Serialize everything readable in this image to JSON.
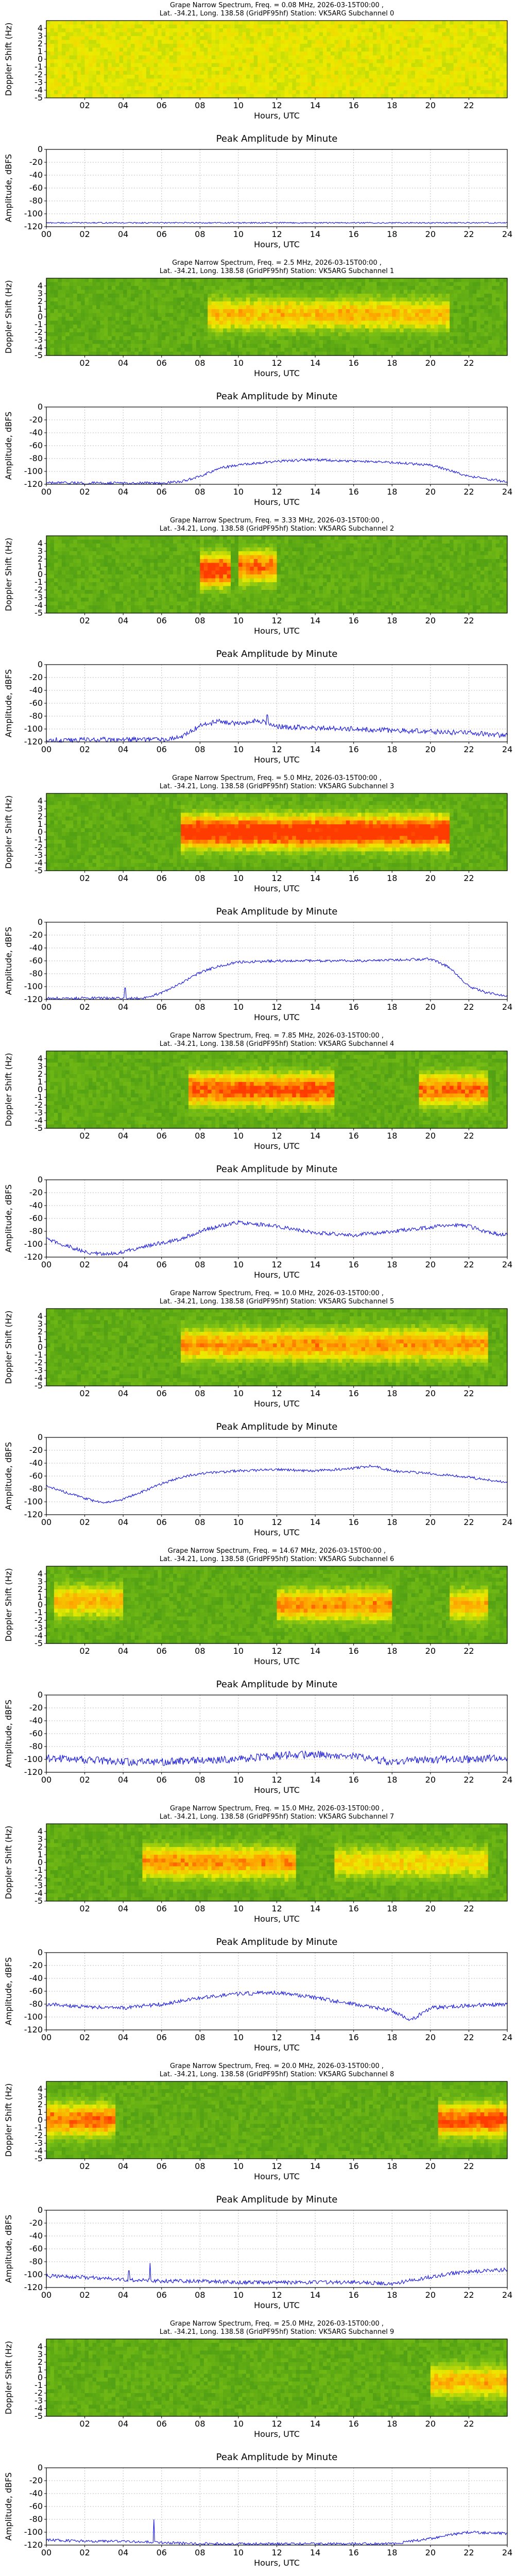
{
  "common": {
    "spectrum_xlabel": "Hours, UTC",
    "spectrum_ylabel": "Doppler Shift (Hz)",
    "spectrum_xticks": [
      "02",
      "04",
      "06",
      "08",
      "10",
      "12",
      "14",
      "16",
      "18",
      "20",
      "22"
    ],
    "spectrum_yticks": [
      "4",
      "3",
      "2",
      "1",
      "0",
      "-1",
      "-2",
      "-3",
      "-4",
      "-5"
    ],
    "amp_title": "Peak Amplitude by Minute",
    "amp_xlabel": "Hours, UTC",
    "amp_ylabel": "Amplitude, dBFS",
    "amp_xticks": [
      "00",
      "02",
      "04",
      "06",
      "08",
      "10",
      "12",
      "14",
      "16",
      "18",
      "20",
      "22",
      "24"
    ],
    "amp_yticks": [
      "0",
      "-20",
      "-40",
      "-60",
      "-80",
      "-100",
      "-120"
    ],
    "colors": {
      "background_green": "#2e8b12",
      "mid_yellow": "#e8e800",
      "hot_orange": "#ff5a00",
      "line_blue": "#1010e0"
    }
  },
  "chart_data": [
    {
      "type": "heatmap",
      "title_line1": "Grape Narrow Spectrum, Freq. = 0.08 MHz, 2026-03-15T00:00 ,",
      "title_line2": "Lat. -34.21, Long. 138.58 (GridPF95hf) Station: VK5ARG Subchannel 0",
      "xlabel": "Hours, UTC",
      "ylabel": "Doppler Shift (Hz)",
      "xlim": [
        0,
        24
      ],
      "ylim": [
        -5,
        5
      ],
      "activity": "uniform yellow-green noise across full band",
      "hot_segments": []
    },
    {
      "type": "line",
      "title": "Peak Amplitude by Minute",
      "xlabel": "Hours, UTC",
      "ylabel": "Amplitude, dBFS",
      "xlim": [
        0,
        24
      ],
      "ylim": [
        -120,
        0
      ],
      "grid": true,
      "x": [
        0,
        24
      ],
      "y": [
        -114,
        -114
      ],
      "noise": 1,
      "spikes": []
    },
    {
      "type": "heatmap",
      "title_line1": "Grape Narrow Spectrum, Freq. = 2.5 MHz, 2026-03-15T00:00 ,",
      "title_line2": "Lat. -34.21, Long. 138.58 (GridPF95hf) Station: VK5ARG Subchannel 1",
      "xlabel": "Hours, UTC",
      "ylabel": "Doppler Shift (Hz)",
      "xlim": [
        0,
        24
      ],
      "ylim": [
        -5,
        5
      ],
      "activity": "yellow signal trace from about 08 to 21 UTC near 0 Hz",
      "hot_segments": [
        [
          8.5,
          21,
          0.3,
          0.5
        ]
      ]
    },
    {
      "type": "line",
      "title": "Peak Amplitude by Minute",
      "xlabel": "Hours, UTC",
      "ylabel": "Amplitude, dBFS",
      "xlim": [
        0,
        24
      ],
      "ylim": [
        -120,
        0
      ],
      "grid": true,
      "x": [
        0,
        6,
        7,
        8,
        9,
        10,
        12,
        14,
        16,
        18,
        20,
        21,
        22,
        23,
        24
      ],
      "y": [
        -118,
        -118,
        -116,
        -108,
        -95,
        -90,
        -84,
        -82,
        -84,
        -86,
        -90,
        -98,
        -108,
        -112,
        -116
      ],
      "noise": 2,
      "spikes": []
    },
    {
      "type": "heatmap",
      "title_line1": "Grape Narrow Spectrum, Freq. = 3.33 MHz, 2026-03-15T00:00 ,",
      "title_line2": "Lat. -34.21, Long. 138.58 (GridPF95hf) Station: VK5ARG Subchannel 2",
      "xlabel": "Hours, UTC",
      "ylabel": "Doppler Shift (Hz)",
      "xlim": [
        0,
        24
      ],
      "ylim": [
        -5,
        5
      ],
      "activity": "orange signal blobs between about 08 and 12 UTC",
      "hot_segments": [
        [
          8,
          9.5,
          0.5,
          0.9
        ],
        [
          10,
          12,
          1.0,
          0.7
        ]
      ]
    },
    {
      "type": "line",
      "title": "Peak Amplitude by Minute",
      "xlabel": "Hours, UTC",
      "ylabel": "Amplitude, dBFS",
      "xlim": [
        0,
        24
      ],
      "ylim": [
        -120,
        0
      ],
      "grid": true,
      "x": [
        0,
        6,
        7,
        8,
        9,
        10,
        11,
        12,
        14,
        16,
        18,
        20,
        22,
        24
      ],
      "y": [
        -117,
        -116,
        -112,
        -95,
        -88,
        -92,
        -86,
        -96,
        -98,
        -100,
        -102,
        -104,
        -106,
        -110
      ],
      "noise": 4,
      "spikes": [
        [
          11.5,
          -78
        ]
      ]
    },
    {
      "type": "heatmap",
      "title_line1": "Grape Narrow Spectrum, Freq. = 5.0 MHz, 2026-03-15T00:00 ,",
      "title_line2": "Lat. -34.21, Long. 138.58 (GridPF95hf) Station: VK5ARG Subchannel 3",
      "xlabel": "Hours, UTC",
      "ylabel": "Doppler Shift (Hz)",
      "xlim": [
        0,
        24
      ],
      "ylim": [
        -5,
        5
      ],
      "activity": "strong orange-red trace from about 07 to 21 UTC",
      "hot_segments": [
        [
          7,
          21,
          0.0,
          1.0
        ]
      ]
    },
    {
      "type": "line",
      "title": "Peak Amplitude by Minute",
      "xlabel": "Hours, UTC",
      "ylabel": "Amplitude, dBFS",
      "xlim": [
        0,
        24
      ],
      "ylim": [
        -120,
        0
      ],
      "grid": true,
      "x": [
        0,
        5,
        6,
        7,
        8,
        9,
        10,
        12,
        14,
        16,
        18,
        20,
        21,
        22,
        23,
        24
      ],
      "y": [
        -118,
        -118,
        -110,
        -95,
        -78,
        -68,
        -62,
        -60,
        -60,
        -60,
        -59,
        -57,
        -70,
        -100,
        -110,
        -115
      ],
      "noise": 2,
      "spikes": [
        [
          4.1,
          -102
        ]
      ]
    },
    {
      "type": "heatmap",
      "title_line1": "Grape Narrow Spectrum, Freq. = 7.85 MHz, 2026-03-15T00:00 ,",
      "title_line2": "Lat. -34.21, Long. 138.58 (GridPF95hf) Station: VK5ARG Subchannel 4",
      "xlabel": "Hours, UTC",
      "ylabel": "Doppler Shift (Hz)",
      "xlim": [
        0,
        24
      ],
      "ylim": [
        -5,
        5
      ],
      "activity": "broad orange spread centered near 11-12 UTC and 20-23 UTC",
      "hot_segments": [
        [
          7.5,
          15,
          0.0,
          0.8
        ],
        [
          19.5,
          23,
          0.0,
          0.7
        ]
      ]
    },
    {
      "type": "line",
      "title": "Peak Amplitude by Minute",
      "xlabel": "Hours, UTC",
      "ylabel": "Amplitude, dBFS",
      "xlim": [
        0,
        24
      ],
      "ylim": [
        -120,
        0
      ],
      "grid": true,
      "x": [
        0,
        1,
        2,
        3,
        4,
        5,
        6,
        7,
        8,
        9,
        10,
        12,
        14,
        16,
        18,
        20,
        21,
        22,
        23,
        24
      ],
      "y": [
        -92,
        -102,
        -112,
        -116,
        -112,
        -104,
        -98,
        -92,
        -80,
        -72,
        -66,
        -72,
        -82,
        -86,
        -80,
        -74,
        -70,
        -72,
        -82,
        -86
      ],
      "noise": 3,
      "spikes": []
    },
    {
      "type": "heatmap",
      "title_line1": "Grape Narrow Spectrum, Freq. = 10.0 MHz, 2026-03-15T00:00 ,",
      "title_line2": "Lat. -34.21, Long. 138.58 (GridPF95hf) Station: VK5ARG Subchannel 5",
      "xlabel": "Hours, UTC",
      "ylabel": "Doppler Shift (Hz)",
      "xlim": [
        0,
        24
      ],
      "ylim": [
        -5,
        5
      ],
      "activity": "orange trace from about 07 to 23 UTC",
      "hot_segments": [
        [
          7,
          23,
          0.3,
          0.6
        ]
      ]
    },
    {
      "type": "line",
      "title": "Peak Amplitude by Minute",
      "xlabel": "Hours, UTC",
      "ylabel": "Amplitude, dBFS",
      "xlim": [
        0,
        24
      ],
      "ylim": [
        -120,
        0
      ],
      "grid": true,
      "x": [
        0,
        1,
        2,
        3,
        4,
        5,
        6,
        7,
        8,
        10,
        12,
        14,
        16,
        17,
        18,
        20,
        22,
        24
      ],
      "y": [
        -75,
        -85,
        -95,
        -102,
        -96,
        -84,
        -72,
        -62,
        -56,
        -52,
        -50,
        -52,
        -48,
        -44,
        -52,
        -56,
        -62,
        -70
      ],
      "noise": 2,
      "spikes": []
    },
    {
      "type": "heatmap",
      "title_line1": "Grape Narrow Spectrum, Freq. = 14.67 MHz, 2026-03-15T00:00 ,",
      "title_line2": "Lat. -34.21, Long. 138.58 (GridPF95hf) Station: VK5ARG Subchannel 6",
      "xlabel": "Hours, UTC",
      "ylabel": "Doppler Shift (Hz)",
      "xlim": [
        0,
        24
      ],
      "ylim": [
        -5,
        5
      ],
      "activity": "yellow blob 0-4 UTC, orange activity 12-18 UTC and 21-23 UTC",
      "hot_segments": [
        [
          0.5,
          4,
          0.5,
          0.5
        ],
        [
          12,
          18,
          0.0,
          0.6
        ],
        [
          21,
          23,
          0.0,
          0.5
        ]
      ]
    },
    {
      "type": "line",
      "title": "Peak Amplitude by Minute",
      "xlabel": "Hours, UTC",
      "ylabel": "Amplitude, dBFS",
      "xlim": [
        0,
        24
      ],
      "ylim": [
        -120,
        0
      ],
      "grid": true,
      "x": [
        0,
        2,
        4,
        6,
        8,
        10,
        12,
        14,
        16,
        18,
        20,
        22,
        24
      ],
      "y": [
        -98,
        -100,
        -104,
        -104,
        -102,
        -100,
        -94,
        -92,
        -96,
        -104,
        -100,
        -100,
        -96
      ],
      "noise": 6,
      "spikes": []
    },
    {
      "type": "heatmap",
      "title_line1": "Grape Narrow Spectrum, Freq. = 15.0 MHz, 2026-03-15T00:00 ,",
      "title_line2": "Lat. -34.21, Long. 138.58 (GridPF95hf) Station: VK5ARG Subchannel 7",
      "xlabel": "Hours, UTC",
      "ylabel": "Doppler Shift (Hz)",
      "xlim": [
        0,
        24
      ],
      "ylim": [
        -5,
        5
      ],
      "activity": "yellow-orange trace across the day, strongest 08-12 UTC",
      "hot_segments": [
        [
          5,
          13,
          0.0,
          0.6
        ],
        [
          15,
          23,
          0.0,
          0.4
        ]
      ]
    },
    {
      "type": "line",
      "title": "Peak Amplitude by Minute",
      "xlabel": "Hours, UTC",
      "ylabel": "Amplitude, dBFS",
      "xlim": [
        0,
        24
      ],
      "ylim": [
        -120,
        0
      ],
      "grid": true,
      "x": [
        0,
        2,
        4,
        6,
        8,
        10,
        12,
        14,
        16,
        18,
        19,
        20,
        22,
        24
      ],
      "y": [
        -80,
        -84,
        -86,
        -80,
        -70,
        -64,
        -62,
        -70,
        -80,
        -90,
        -105,
        -86,
        -82,
        -80
      ],
      "noise": 3,
      "spikes": []
    },
    {
      "type": "heatmap",
      "title_line1": "Grape Narrow Spectrum, Freq. = 20.0 MHz, 2026-03-15T00:00 ,",
      "title_line2": "Lat. -34.21, Long. 138.58 (GridPF95hf) Station: VK5ARG Subchannel 8",
      "xlabel": "Hours, UTC",
      "ylabel": "Doppler Shift (Hz)",
      "xlim": [
        0,
        24
      ],
      "ylim": [
        -5,
        5
      ],
      "activity": "orange trace 0-3 UTC and 20.5-24 UTC",
      "hot_segments": [
        [
          0,
          3.5,
          0.0,
          0.7
        ],
        [
          20.5,
          24,
          0.0,
          0.8
        ]
      ]
    },
    {
      "type": "line",
      "title": "Peak Amplitude by Minute",
      "xlabel": "Hours, UTC",
      "ylabel": "Amplitude, dBFS",
      "xlim": [
        0,
        24
      ],
      "ylim": [
        -120,
        0
      ],
      "grid": true,
      "x": [
        0,
        2,
        4,
        6,
        8,
        10,
        12,
        14,
        16,
        18,
        20,
        21,
        22,
        24
      ],
      "y": [
        -102,
        -104,
        -108,
        -110,
        -110,
        -112,
        -112,
        -112,
        -112,
        -114,
        -104,
        -98,
        -96,
        -92
      ],
      "noise": 3,
      "spikes": [
        [
          5.4,
          -82
        ],
        [
          4.3,
          -94
        ]
      ]
    },
    {
      "type": "heatmap",
      "title_line1": "Grape Narrow Spectrum, Freq. = 25.0 MHz, 2026-03-15T00:00 ,",
      "title_line2": "Lat. -34.21, Long. 138.58 (GridPF95hf) Station: VK5ARG Subchannel 9",
      "xlabel": "Hours, UTC",
      "ylabel": "Doppler Shift (Hz)",
      "xlim": [
        0,
        24
      ],
      "ylim": [
        -5,
        5
      ],
      "activity": "faint yellow trace near +2 Hz early, yellow band 20-24 UTC",
      "hot_segments": [
        [
          20,
          24,
          -0.5,
          0.5
        ]
      ]
    },
    {
      "type": "line",
      "title": "Peak Amplitude by Minute",
      "xlabel": "Hours, UTC",
      "ylabel": "Amplitude, dBFS",
      "xlim": [
        0,
        24
      ],
      "ylim": [
        -120,
        0
      ],
      "grid": true,
      "x": [
        0,
        2,
        4,
        6,
        8,
        10,
        12,
        14,
        16,
        18,
        20,
        21,
        22,
        24
      ],
      "y": [
        -112,
        -114,
        -114,
        -116,
        -118,
        -118,
        -118,
        -118,
        -118,
        -118,
        -110,
        -104,
        -100,
        -102
      ],
      "noise": 2,
      "spikes": [
        [
          5.6,
          -80
        ]
      ]
    }
  ]
}
